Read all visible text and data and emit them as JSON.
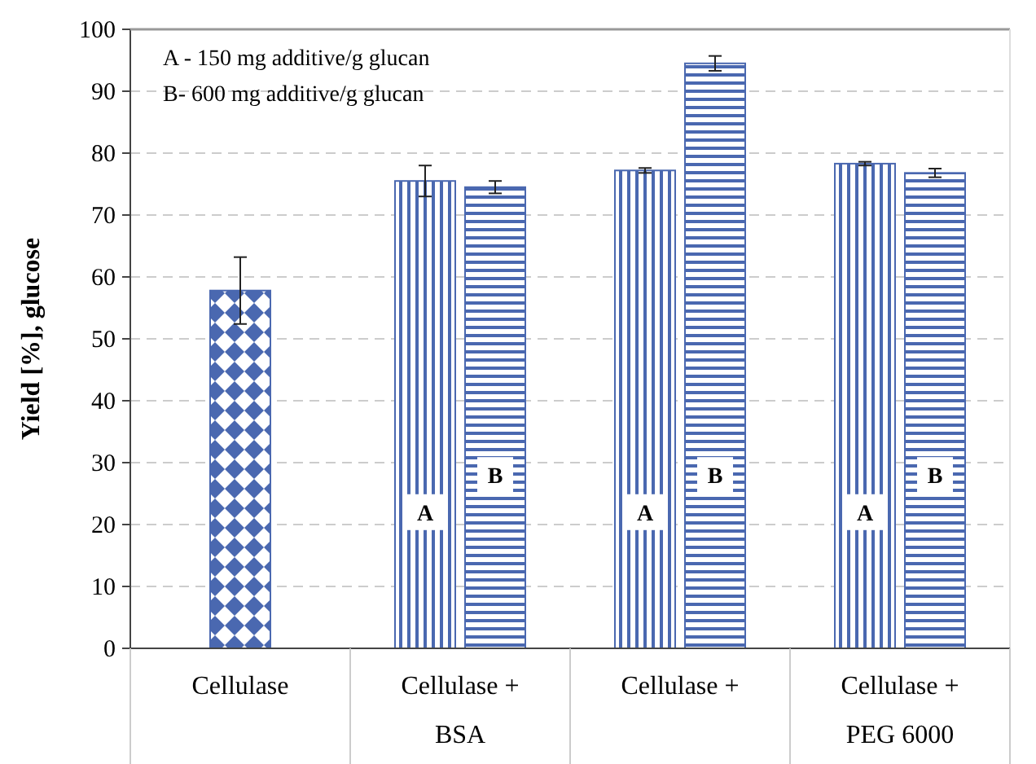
{
  "chart_data": {
    "type": "bar",
    "ylabel": "Yield [%], glucose",
    "categories": [
      "Cellulase",
      "Cellulase +\nBSA",
      "Cellulase +",
      "Cellulase +\nPEG 6000"
    ],
    "series": [
      {
        "color": "#4a68b0",
        "values": [
          57.8,
          null,
          null,
          null
        ],
        "errors": [
          5.4,
          null,
          null,
          null
        ]
      },
      {
        "name": "A",
        "color": "#4a68b0",
        "values": [
          null,
          75.5,
          77.2,
          78.3
        ],
        "errors": [
          null,
          2.5,
          0.4,
          0.3
        ]
      },
      {
        "name": "B",
        "color": "#4a68b0",
        "values": [
          null,
          74.5,
          94.5,
          76.8
        ],
        "errors": [
          null,
          1,
          1.2,
          0.7
        ]
      }
    ],
    "ylim": [
      0,
      100
    ],
    "yticks": [
      0,
      10,
      20,
      30,
      40,
      50,
      60,
      70,
      80,
      90,
      100
    ],
    "grid": "y",
    "annotations": [
      "A - 150 mg additive/g glucan",
      "B- 600 mg additive/g glucan"
    ]
  }
}
